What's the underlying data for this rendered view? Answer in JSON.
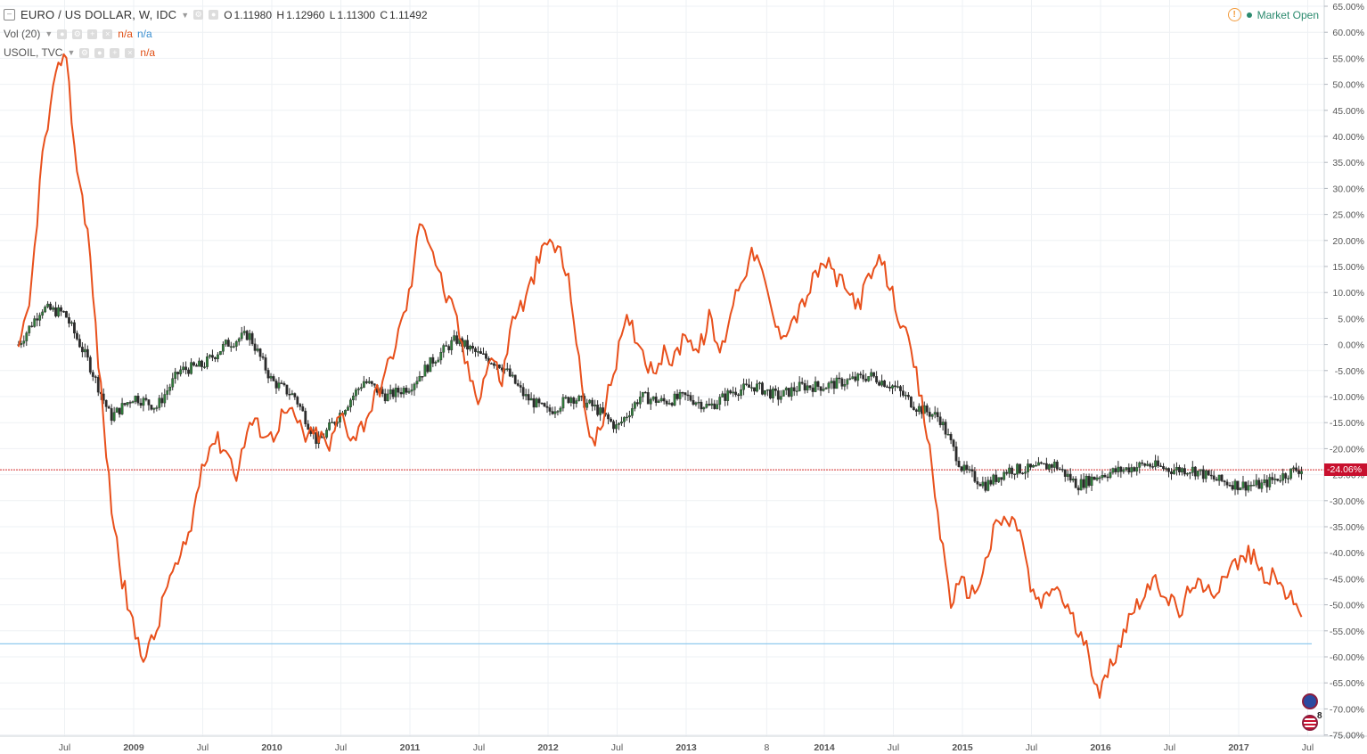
{
  "header": {
    "symbol": "EURO / US DOLLAR, W, IDC",
    "ohlc": {
      "o_label": "O",
      "o": "1.11980",
      "h_label": "H",
      "h": "1.12960",
      "l_label": "L",
      "l": "1.11300",
      "c_label": "C",
      "c": "1.11492"
    },
    "vol_label": "Vol (20)",
    "vol_val1": "n/a",
    "vol_val2": "n/a",
    "overlay_label": "USOIL, TVC",
    "overlay_val": "n/a",
    "market_status": "Market Open"
  },
  "price_tag": "-24.06%",
  "flag_count": "8",
  "colors": {
    "eurusd": "#2b2b2b",
    "up_body": "#2f7d3a",
    "usoil": "#e8501c",
    "hline_red": "#d32f2f",
    "hline_blue": "#8fc9ee",
    "grid": "#eef1f4"
  },
  "icons": [
    "collapse-icon",
    "settings-icon",
    "eye-icon",
    "plus-icon",
    "close-icon",
    "warning-icon",
    "eu-flag-icon",
    "us-flag-icon"
  ],
  "chart_data": {
    "type": "line",
    "x_ticks": [
      "Jul",
      "2009",
      "Jul",
      "2010",
      "Jul",
      "2011",
      "Jul",
      "2012",
      "Jul",
      "2013",
      "8",
      "2014",
      "Jul",
      "2015",
      "Jul",
      "2016",
      "Jul",
      "2017",
      "Jul"
    ],
    "y_ticks": [
      "65.00%",
      "60.00%",
      "55.00%",
      "50.00%",
      "45.00%",
      "40.00%",
      "35.00%",
      "30.00%",
      "25.00%",
      "20.00%",
      "15.00%",
      "10.00%",
      "5.00%",
      "0.00%",
      "-5.00%",
      "-10.00%",
      "-15.00%",
      "-20.00%",
      "-25.00%",
      "-30.00%",
      "-35.00%",
      "-40.00%",
      "-45.00%",
      "-50.00%",
      "-55.00%",
      "-60.00%",
      "-65.00%",
      "-70.00%",
      "-75.00%"
    ],
    "ylim": [
      -75,
      65
    ],
    "percent_lines": {
      "red": -24.06,
      "blue": -57.5
    },
    "series": [
      {
        "name": "EURO / US DOLLAR",
        "style": "candles",
        "x": [
          "2008-03",
          "2008-05",
          "2008-07",
          "2008-09",
          "2008-11",
          "2009-01",
          "2009-03",
          "2009-05",
          "2009-07",
          "2009-09",
          "2009-11",
          "2010-01",
          "2010-03",
          "2010-05",
          "2010-07",
          "2010-09",
          "2010-11",
          "2011-01",
          "2011-03",
          "2011-05",
          "2011-07",
          "2011-09",
          "2011-11",
          "2012-01",
          "2012-03",
          "2012-05",
          "2012-07",
          "2012-09",
          "2012-11",
          "2013-01",
          "2013-03",
          "2013-05",
          "2013-07",
          "2013-09",
          "2013-11",
          "2014-01",
          "2014-03",
          "2014-05",
          "2014-07",
          "2014-09",
          "2014-11",
          "2015-01",
          "2015-03",
          "2015-05",
          "2015-07",
          "2015-09",
          "2015-11",
          "2016-01",
          "2016-03",
          "2016-05",
          "2016-07",
          "2016-09",
          "2016-11",
          "2017-01",
          "2017-03",
          "2017-05",
          "2017-06"
        ],
        "values": [
          0,
          7,
          6,
          -3,
          -14,
          -10,
          -12,
          -5,
          -4,
          0,
          2,
          -7,
          -10,
          -19,
          -13,
          -7,
          -10,
          -8,
          -3,
          1,
          -2,
          -4,
          -10,
          -13,
          -10,
          -12,
          -16,
          -10,
          -11,
          -10,
          -12,
          -9,
          -8,
          -10,
          -8,
          -8,
          -7,
          -6,
          -8,
          -12,
          -14,
          -24,
          -27,
          -24,
          -24,
          -23,
          -27,
          -25,
          -24,
          -23,
          -24,
          -24,
          -26,
          -27,
          -27,
          -25,
          -24
        ]
      },
      {
        "name": "USOIL",
        "style": "line",
        "x": [
          "2008-03",
          "2008-04",
          "2008-05",
          "2008-06",
          "2008-07",
          "2008-08",
          "2008-09",
          "2008-10",
          "2008-11",
          "2008-12",
          "2009-01",
          "2009-02",
          "2009-03",
          "2009-04",
          "2009-05",
          "2009-06",
          "2009-07",
          "2009-08",
          "2009-09",
          "2009-10",
          "2009-11",
          "2009-12",
          "2010-01",
          "2010-02",
          "2010-03",
          "2010-04",
          "2010-05",
          "2010-06",
          "2010-07",
          "2010-08",
          "2010-09",
          "2010-10",
          "2010-11",
          "2010-12",
          "2011-01",
          "2011-02",
          "2011-03",
          "2011-04",
          "2011-05",
          "2011-06",
          "2011-07",
          "2011-08",
          "2011-09",
          "2011-10",
          "2011-11",
          "2011-12",
          "2012-01",
          "2012-02",
          "2012-03",
          "2012-04",
          "2012-05",
          "2012-06",
          "2012-07",
          "2012-08",
          "2012-09",
          "2012-10",
          "2012-11",
          "2012-12",
          "2013-01",
          "2013-02",
          "2013-03",
          "2013-04",
          "2013-05",
          "2013-06",
          "2013-07",
          "2013-08",
          "2013-09",
          "2013-10",
          "2013-11",
          "2013-12",
          "2014-01",
          "2014-02",
          "2014-03",
          "2014-04",
          "2014-05",
          "2014-06",
          "2014-07",
          "2014-08",
          "2014-09",
          "2014-10",
          "2014-11",
          "2014-12",
          "2015-01",
          "2015-02",
          "2015-03",
          "2015-04",
          "2015-05",
          "2015-06",
          "2015-07",
          "2015-08",
          "2015-09",
          "2015-10",
          "2015-11",
          "2015-12",
          "2016-01",
          "2016-02",
          "2016-03",
          "2016-04",
          "2016-05",
          "2016-06",
          "2016-07",
          "2016-08",
          "2016-09",
          "2016-10",
          "2016-11",
          "2016-12",
          "2017-01",
          "2017-02",
          "2017-03",
          "2017-04",
          "2017-05",
          "2017-06"
        ],
        "values": [
          -2,
          8,
          35,
          48,
          58,
          35,
          22,
          -5,
          -30,
          -45,
          -55,
          -60,
          -55,
          -45,
          -42,
          -35,
          -22,
          -18,
          -20,
          -25,
          -15,
          -16,
          -18,
          -13,
          -14,
          -18,
          -17,
          -20,
          -13,
          -18,
          -15,
          -10,
          -5,
          2,
          10,
          25,
          18,
          10,
          5,
          -5,
          -10,
          -2,
          -7,
          6,
          8,
          15,
          20,
          18,
          10,
          -10,
          -20,
          -12,
          -2,
          5,
          0,
          -5,
          -2,
          -3,
          3,
          -2,
          5,
          -2,
          8,
          14,
          18,
          10,
          2,
          4,
          7,
          12,
          16,
          13,
          10,
          8,
          13,
          16,
          9,
          2,
          -6,
          -18,
          -35,
          -49,
          -46,
          -48,
          -42,
          -34,
          -34,
          -35,
          -48,
          -50,
          -46,
          -50,
          -55,
          -60,
          -67,
          -61,
          -55,
          -50,
          -47,
          -46,
          -49,
          -52,
          -45,
          -48,
          -47,
          -43,
          -42,
          -40,
          -44,
          -45,
          -47,
          -51
        ]
      }
    ]
  }
}
